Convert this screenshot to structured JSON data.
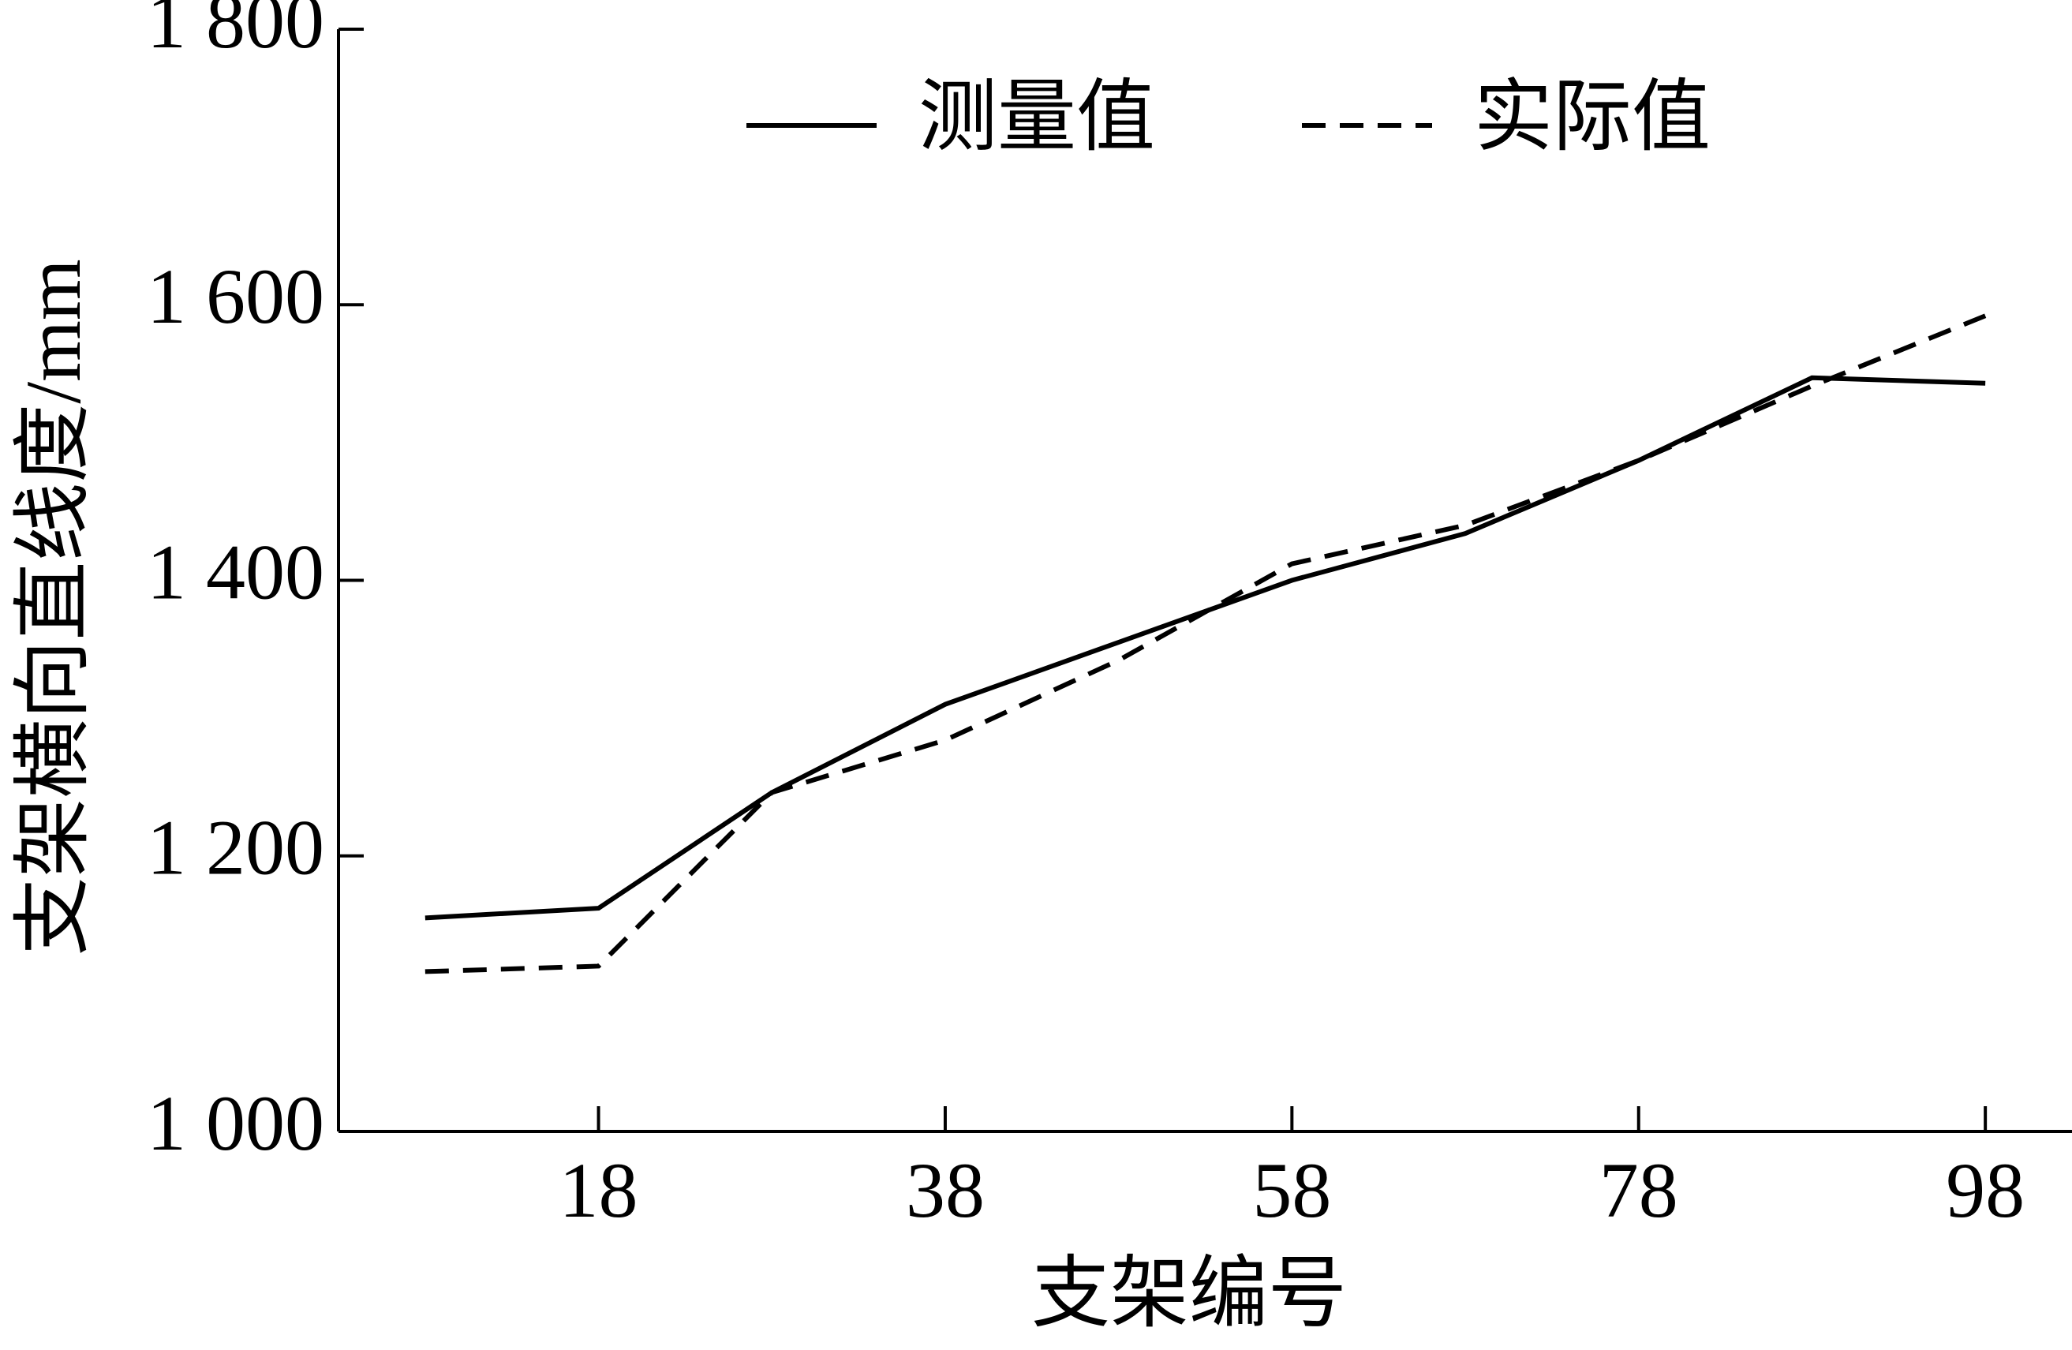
{
  "chart_data": {
    "type": "line",
    "x_label": "支架编号",
    "y_label": "支架横向直线度/mm",
    "x": [
      8,
      18,
      28,
      38,
      48,
      58,
      68,
      78,
      88,
      98
    ],
    "series": [
      {
        "name": "测量值",
        "color": "#000000",
        "line_style": "solid",
        "values": [
          1155,
          1162,
          1246,
          1310,
          1355,
          1400,
          1434,
          1487,
          1547,
          1543
        ]
      },
      {
        "name": "实际值",
        "color": "#000000",
        "line_style": "dashed",
        "values": [
          1116,
          1120,
          1246,
          1284,
          1342,
          1412,
          1440,
          1487,
          1541,
          1592
        ]
      }
    ],
    "xlim": [
      3,
      103
    ],
    "xticks": [
      18,
      38,
      58,
      78,
      98
    ],
    "ylim": [
      1000,
      1800
    ],
    "yticks": [
      {
        "value": 1000,
        "label": "1 000"
      },
      {
        "value": 1200,
        "label": "1 200"
      },
      {
        "value": 1400,
        "label": "1 400"
      },
      {
        "value": 1600,
        "label": "1 600"
      },
      {
        "value": 1800,
        "label": "1 800"
      }
    ],
    "grid": false,
    "legend": "top"
  }
}
